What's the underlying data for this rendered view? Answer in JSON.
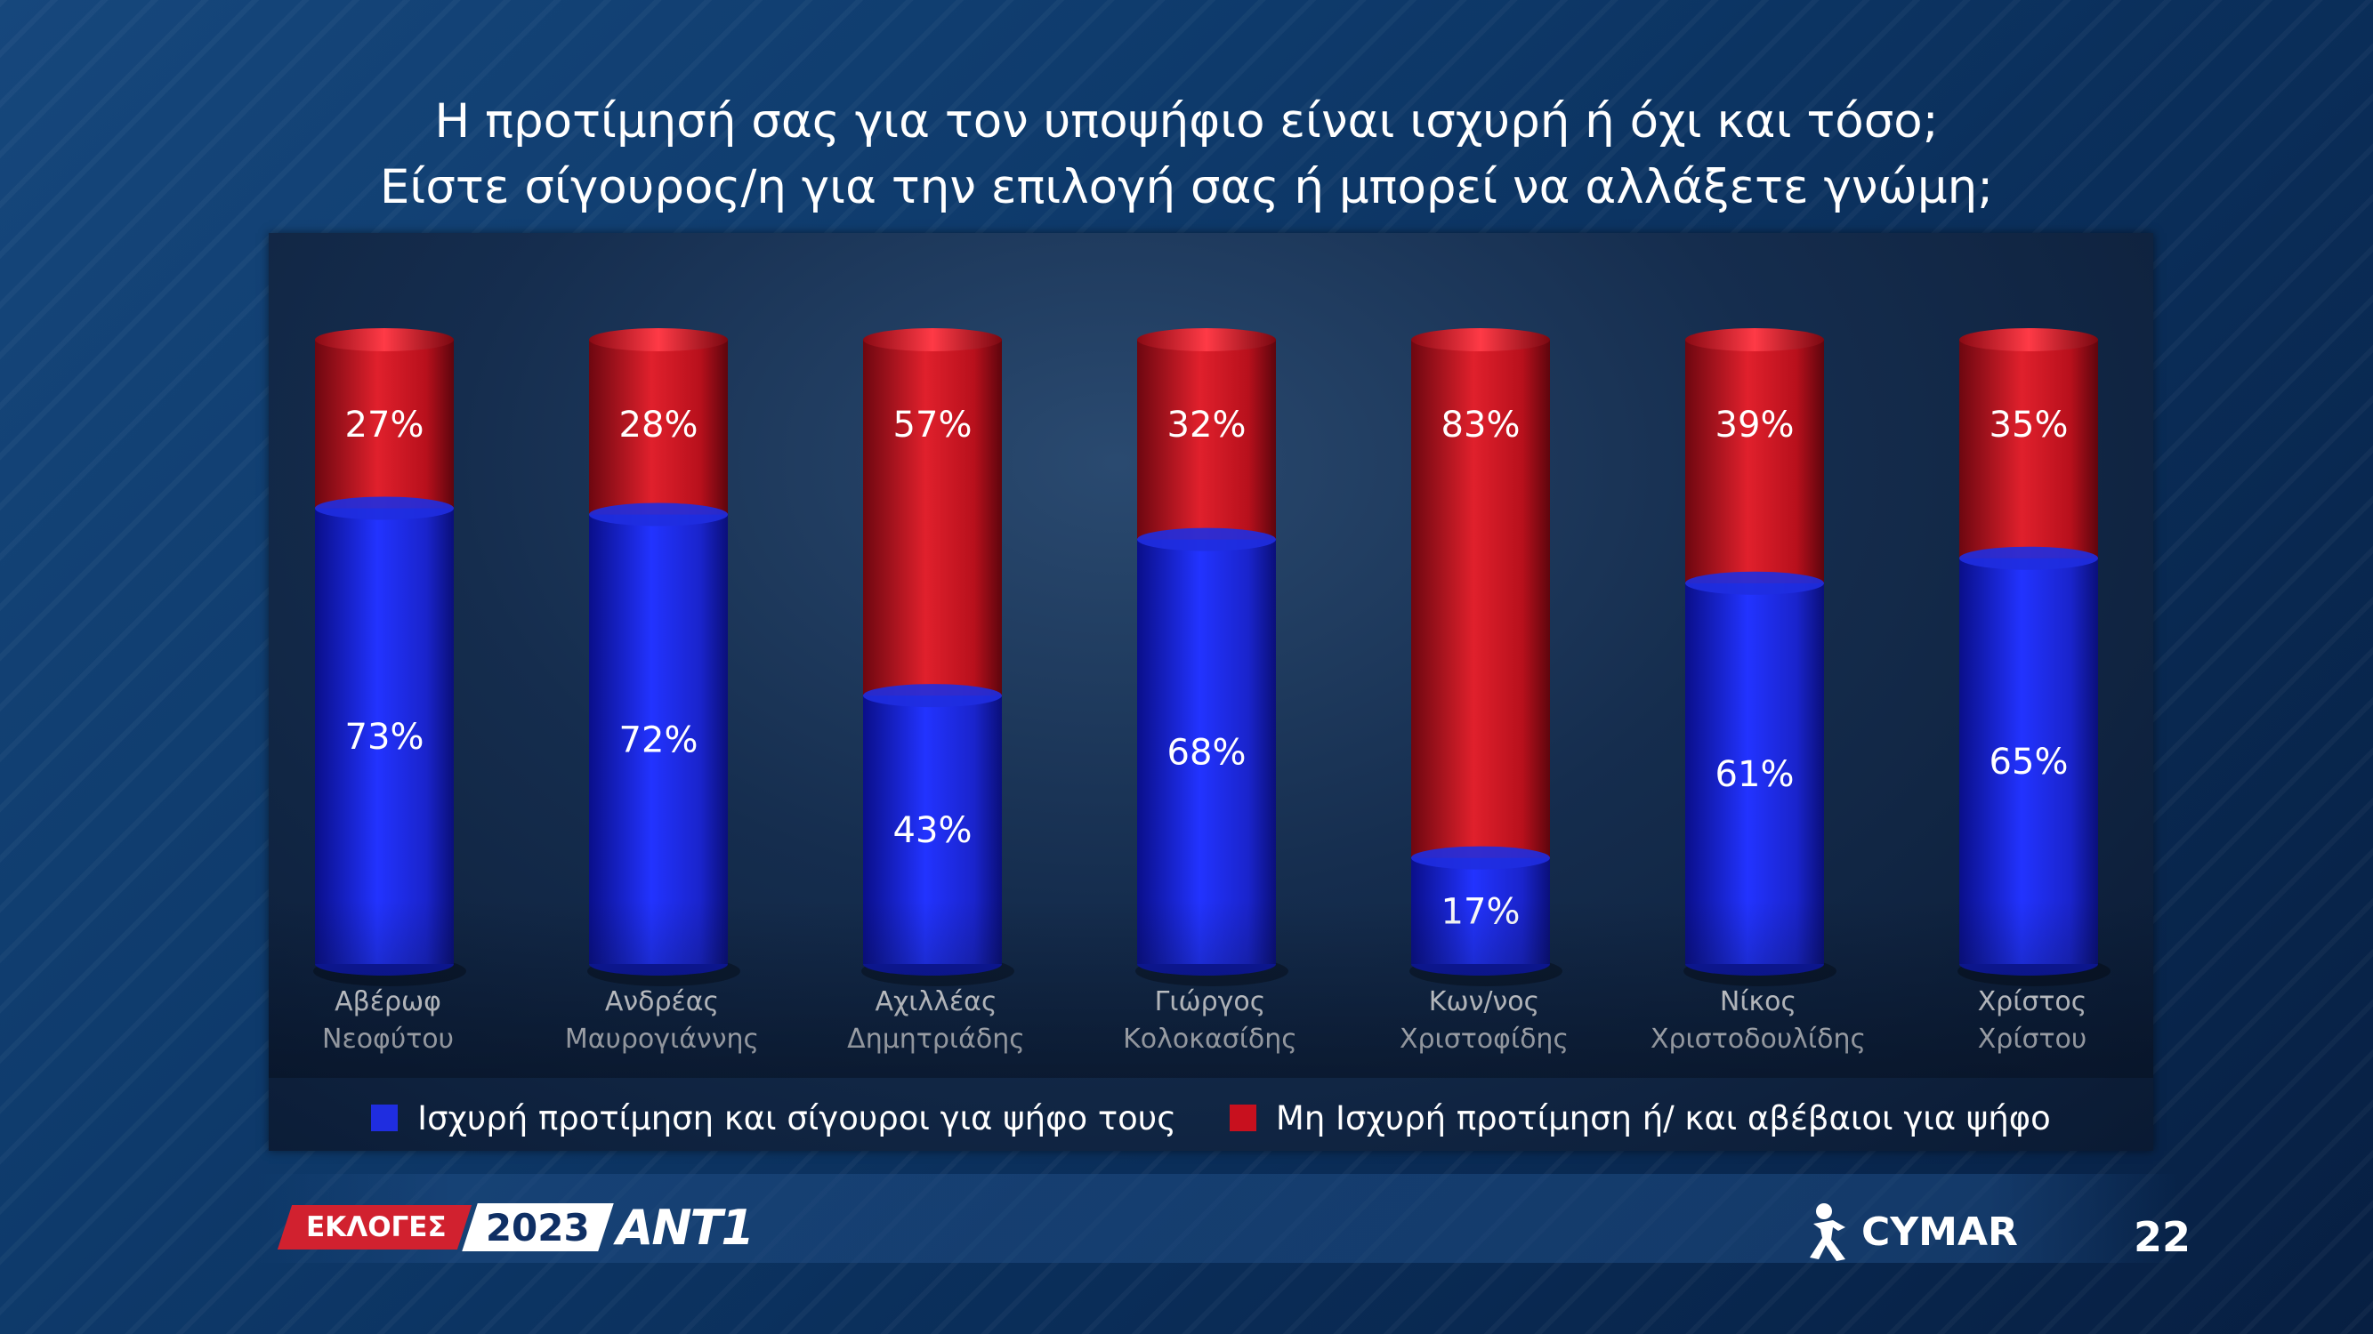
{
  "title": {
    "line1": "Η προτίμησή σας για τον υποψήφιο είναι ισχυρή ή όχι και τόσο;",
    "line2": "Είστε σίγουρος/η για την επιλογή σας ή μπορεί να αλλάξετε γνώμη;"
  },
  "colors": {
    "strong": "#1f2de0",
    "weak": "#c8101e",
    "accent_red": "#d1212f"
  },
  "chart_data": {
    "type": "bar",
    "stacked": true,
    "style": "3d-cylinder",
    "categories": [
      [
        "Αβέρωφ",
        "Νεοφύτου"
      ],
      [
        "Ανδρέας",
        "Μαυρογιάννης"
      ],
      [
        "Αχιλλέας",
        "Δημητριάδης"
      ],
      [
        "Γιώργος",
        "Κολοκασίδης"
      ],
      [
        "Κων/νος",
        "Χριστοφίδης"
      ],
      [
        "Νίκος",
        "Χριστοδουλίδης"
      ],
      [
        "Χρίστος",
        "Χρίστου"
      ]
    ],
    "series": [
      {
        "name": "Ισχυρή προτίμηση και σίγουροι για ψήφο τους",
        "color": "#1f2de0",
        "values": [
          73,
          72,
          43,
          68,
          17,
          61,
          65
        ]
      },
      {
        "name": "Μη Ισχυρή προτίμηση ή/ και αβέβαιοι για ψήφο",
        "color": "#c8101e",
        "values": [
          27,
          28,
          57,
          32,
          83,
          39,
          35
        ]
      }
    ],
    "data_labels": [
      [
        "73%",
        "72%",
        "43%",
        "68%",
        "17%",
        "61%",
        "65%"
      ],
      [
        "27%",
        "28%",
        "57%",
        "32%",
        "83%",
        "39%",
        "35%"
      ]
    ],
    "ylim": [
      0,
      100
    ],
    "grid": false,
    "legend_position": "bottom"
  },
  "footer": {
    "elections_label": "ΕΚΛΟΓΕΣ",
    "year": "2023",
    "channel": "ANT1",
    "pollster": "CYMAR",
    "page_number": "22"
  }
}
